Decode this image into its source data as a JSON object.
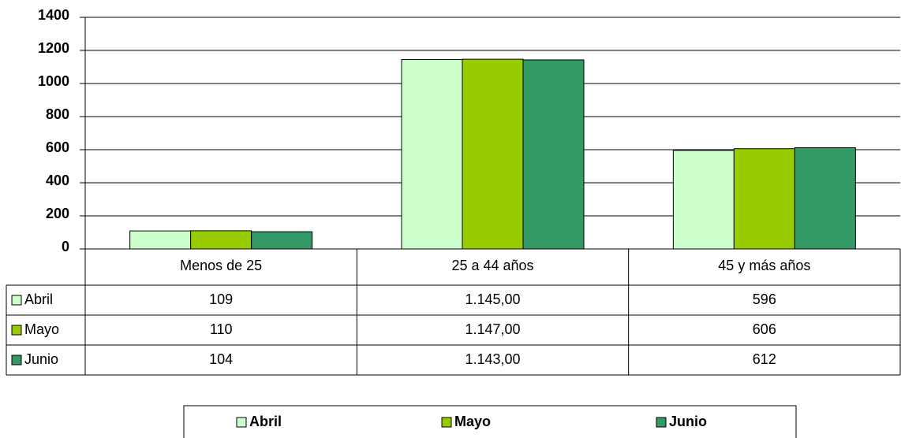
{
  "chart_data": {
    "type": "bar",
    "categories": [
      "Menos de 25",
      "25 a 44 años",
      "45 y más años"
    ],
    "series": [
      {
        "name": "Abril",
        "color": "#ccffcc",
        "values": [
          109,
          1145,
          596
        ],
        "value_labels": [
          "109",
          "1.145,00",
          "596"
        ]
      },
      {
        "name": "Mayo",
        "color": "#99cc00",
        "values": [
          110,
          1147,
          606
        ],
        "value_labels": [
          "110",
          "1.147,00",
          "606"
        ]
      },
      {
        "name": "Junio",
        "color": "#339966",
        "values": [
          104,
          1143,
          612
        ],
        "value_labels": [
          "104",
          "1.143,00",
          "612"
        ]
      }
    ],
    "ylim": [
      0,
      1400
    ],
    "yticks": [
      0,
      200,
      400,
      600,
      800,
      1000,
      1200,
      1400
    ],
    "grid": true,
    "legend": "bottom"
  }
}
